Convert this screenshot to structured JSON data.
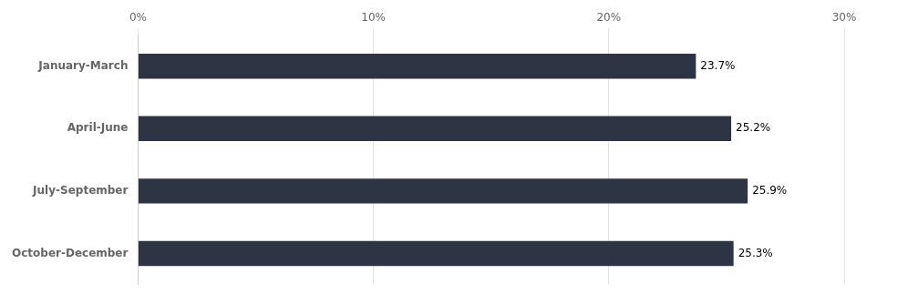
{
  "chart_data": {
    "type": "bar",
    "orientation": "horizontal",
    "categories": [
      "January-March",
      "April-June",
      "July-September",
      "October-December"
    ],
    "values": [
      23.7,
      25.2,
      25.9,
      25.3
    ],
    "value_labels": [
      "23.7%",
      "25.2%",
      "25.9%",
      "25.3%"
    ],
    "data_labels": true,
    "color": "#2d3444",
    "xlim": [
      0,
      30
    ],
    "xticks": [
      {
        "value": 0,
        "label": "0%"
      },
      {
        "value": 10,
        "label": "10%"
      },
      {
        "value": 20,
        "label": "20%"
      },
      {
        "value": 30,
        "label": "30%"
      }
    ],
    "grid": true
  }
}
